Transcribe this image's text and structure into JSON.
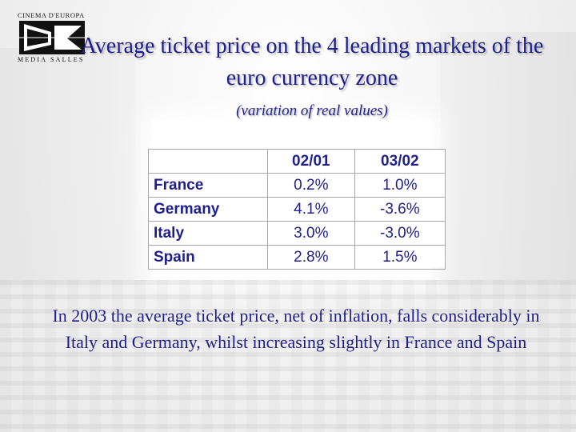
{
  "logo": {
    "top_text": "CINEMA D'EUROPA",
    "bottom_text": "MEDIA SALLES"
  },
  "title": "Average ticket price on the 4 leading markets of the euro currency zone",
  "subtitle": "(variation of real values)",
  "table": {
    "columns": [
      "",
      "02/01",
      "03/02"
    ],
    "rows": [
      {
        "country": "France",
        "v1": "0.2%",
        "v2": "1.0%"
      },
      {
        "country": "Germany",
        "v1": "4.1%",
        "v2": "-3.6%"
      },
      {
        "country": "Italy",
        "v1": "3.0%",
        "v2": "-3.0%"
      },
      {
        "country": "Spain",
        "v1": "2.8%",
        "v2": "1.5%"
      }
    ]
  },
  "footer": "In 2003 the average ticket price, net of inflation, falls considerably in Italy and Germany, whilst increasing slightly in France and Spain",
  "colors": {
    "text_blue": "#1f1f8c",
    "background": "#f4f4f4"
  }
}
